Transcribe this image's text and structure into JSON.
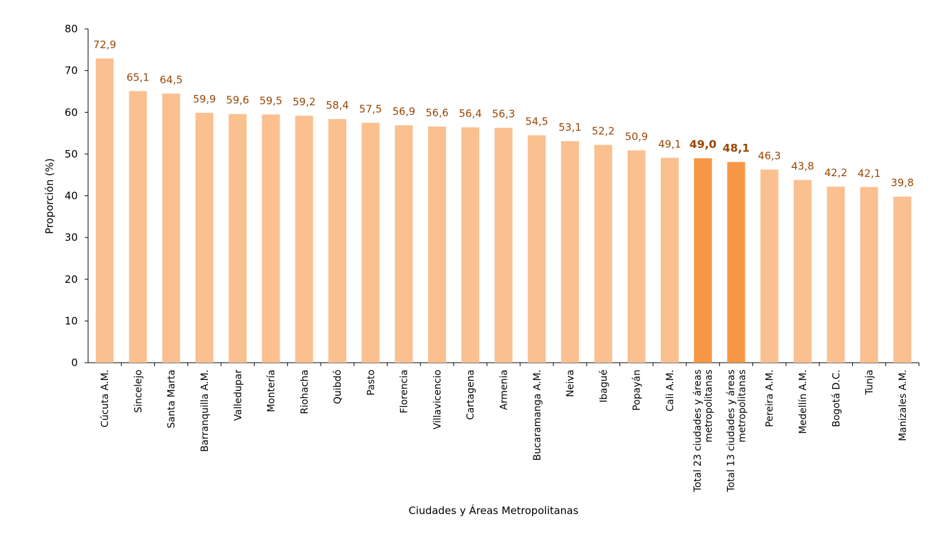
{
  "chart_data": {
    "type": "bar",
    "title": "",
    "xlabel": "Ciudades y  Áreas Metropolitanas",
    "ylabel": "Proporción (%)",
    "ylim": [
      0,
      80
    ],
    "yticks": [
      0,
      10,
      20,
      30,
      40,
      50,
      60,
      70,
      80
    ],
    "grid": false,
    "colors": {
      "bar": "#FAC090",
      "highlight": "#F79646",
      "label": "#984807"
    },
    "categories": [
      "Cúcuta A.M.",
      "Sincelejo",
      "Santa Marta",
      "Barranquilla A.M.",
      "Valledupar",
      "Montería",
      "Riohacha",
      "Quibdó",
      "Pasto",
      "Florencia",
      "Villavicencio",
      "Cartagena",
      "Armenia",
      "Bucaramanga A.M.",
      "Neiva",
      "Ibagué",
      "Popayán",
      "Cali A.M.",
      "Total 23 ciudades y áreas metropolitanas",
      "Total 13 ciudades y áreas metropolitanas",
      "Pereira A.M.",
      "Medellín A.M.",
      "Bogotá D.C.",
      "Tunja",
      "Manizales A.M."
    ],
    "values": [
      72.9,
      65.1,
      64.5,
      59.9,
      59.6,
      59.5,
      59.2,
      58.4,
      57.5,
      56.9,
      56.6,
      56.4,
      56.3,
      54.5,
      53.1,
      52.2,
      50.9,
      49.1,
      49.0,
      48.1,
      46.3,
      43.8,
      42.2,
      42.1,
      39.8
    ],
    "value_labels": [
      "72,9",
      "65,1",
      "64,5",
      "59,9",
      "59,6",
      "59,5",
      "59,2",
      "58,4",
      "57,5",
      "56,9",
      "56,6",
      "56,4",
      "56,3",
      "54,5",
      "53,1",
      "52,2",
      "50,9",
      "49,1",
      "49,0",
      "48,1",
      "46,3",
      "43,8",
      "42,2",
      "42,1",
      "39,8"
    ],
    "highlighted": [
      "Total 23 ciudades y áreas metropolitanas",
      "Total 13 ciudades y áreas metropolitanas"
    ],
    "category_lines": {
      "Total 23 ciudades y áreas metropolitanas": [
        "Total 23 ciudades y áreas",
        "metropolitanas"
      ],
      "Total 13 ciudades y áreas metropolitanas": [
        "Total 13 ciudades y áreas",
        "metropolitanas"
      ]
    }
  }
}
